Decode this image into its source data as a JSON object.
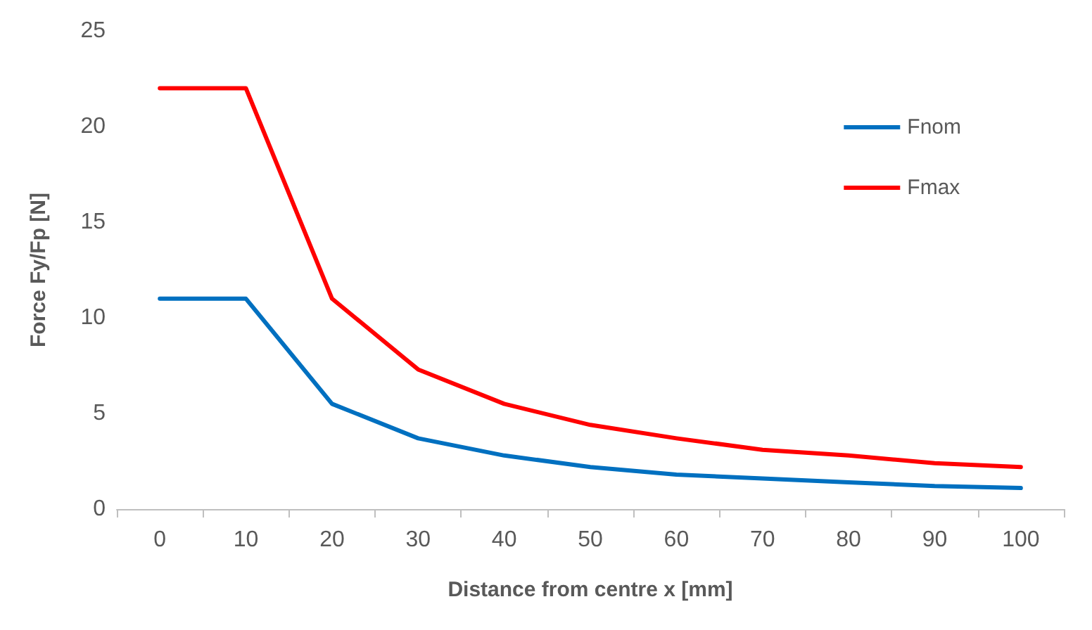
{
  "chart_data": {
    "type": "line",
    "xlabel": "Distance from centre x [mm]",
    "ylabel": "Force Fy/Fp [N]",
    "categories": [
      "0",
      "10",
      "20",
      "30",
      "40",
      "50",
      "60",
      "70",
      "80",
      "90",
      "100"
    ],
    "series": [
      {
        "name": "Fnom",
        "color": "#0070c0",
        "values": [
          11,
          11,
          5.5,
          3.7,
          2.8,
          2.2,
          1.8,
          1.6,
          1.4,
          1.2,
          1.1
        ]
      },
      {
        "name": "Fmax",
        "color": "#ff0000",
        "values": [
          22,
          22,
          11,
          7.3,
          5.5,
          4.4,
          3.7,
          3.1,
          2.8,
          2.4,
          2.2
        ]
      }
    ],
    "ylim": [
      0,
      25
    ],
    "yticks": [
      0,
      5,
      10,
      15,
      20,
      25
    ],
    "grid": false,
    "legend": "top right",
    "marker": "none",
    "line_style": "solid"
  }
}
